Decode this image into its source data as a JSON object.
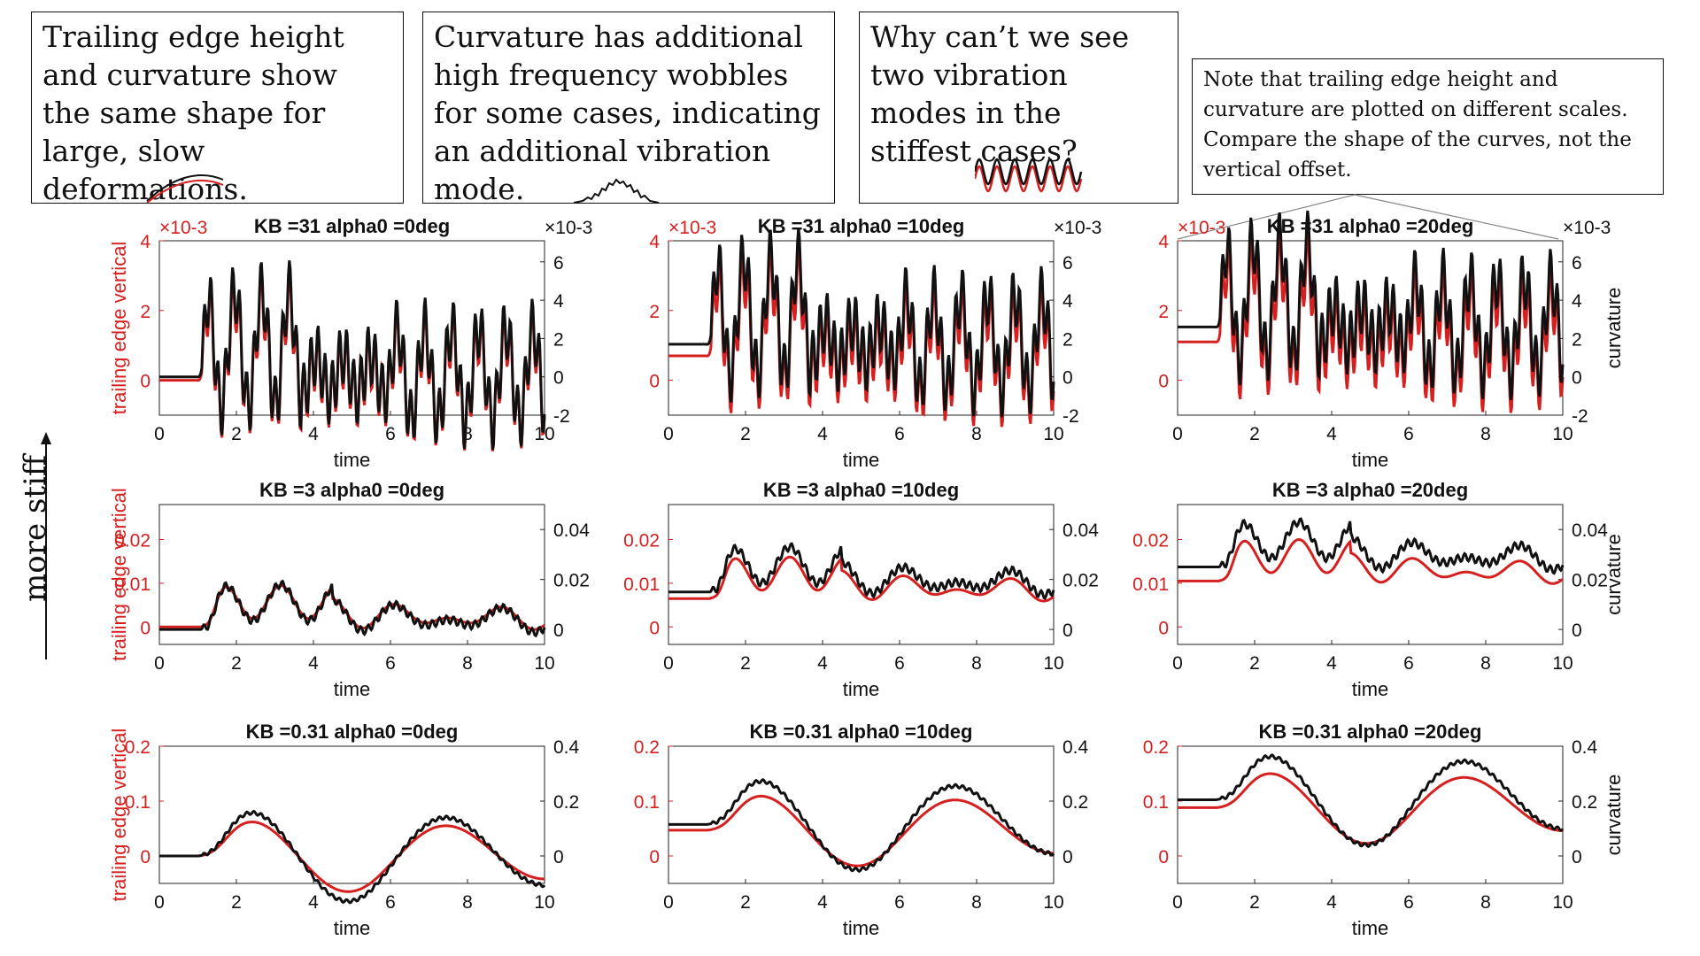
{
  "notes": [
    {
      "id": "n1",
      "text": "Trailing edge height and curvature show the same shape for large, slow deformations."
    },
    {
      "id": "n2",
      "text": "Curvature has additional high frequency wobbles for some cases, indicating an additional vibration mode."
    },
    {
      "id": "n3",
      "text": "Why can’t we see two vibration modes in the stiffest cases?"
    },
    {
      "id": "n4",
      "text": "Note that trailing edge height and curvature are plotted on different scales. Compare the shape of the curves, not the vertical offset."
    }
  ],
  "side_label": "more stiff",
  "colors": {
    "red": "#d62020",
    "black": "#111111"
  },
  "chart_data": [
    {
      "type": "line",
      "title": "KB =31 alpha0 =0deg",
      "xlabel": "time",
      "ylabel_left": "trailing edge vertical",
      "ylabel_right": "",
      "left_multiplier": "×10-3",
      "right_multiplier": "×10-3",
      "xlim": [
        0,
        10
      ],
      "ylim_left": [
        -1,
        4
      ],
      "ylim_right": [
        -2,
        7.1
      ],
      "xticks": [
        0,
        2,
        4,
        6,
        8,
        10
      ],
      "yticks_left": [
        0,
        2,
        4
      ],
      "yticks_right": [
        -2,
        0,
        2,
        4,
        6
      ],
      "series": [
        {
          "color": "red",
          "axis": "left",
          "base": 0.0,
          "slow": "flat",
          "fast_amp": 0.9
        },
        {
          "color": "black",
          "axis": "right",
          "base": 0.0,
          "slow": "flat",
          "fast_amp": 1.6
        }
      ]
    },
    {
      "type": "line",
      "title": "KB =31 alpha0 =10deg",
      "xlabel": "time",
      "ylabel_left": "",
      "ylabel_right": "",
      "left_multiplier": "×10-3",
      "right_multiplier": "×10-3",
      "xlim": [
        0,
        10
      ],
      "ylim_left": [
        -1,
        4
      ],
      "ylim_right": [
        -2,
        7.1
      ],
      "xticks": [
        0,
        2,
        4,
        6,
        8,
        10
      ],
      "yticks_left": [
        0,
        2,
        4
      ],
      "yticks_right": [
        -2,
        0,
        2,
        4,
        6
      ],
      "series": [
        {
          "color": "red",
          "axis": "left",
          "base": 0.7,
          "slow": "flat",
          "fast_amp": 0.9
        },
        {
          "color": "black",
          "axis": "right",
          "base": 1.7,
          "slow": "flat",
          "fast_amp": 1.6
        }
      ]
    },
    {
      "type": "line",
      "title": "KB =31 alpha0 =20deg",
      "xlabel": "time",
      "ylabel_left": "",
      "ylabel_right": "curvature",
      "left_multiplier": "×10-3",
      "right_multiplier": "×10-3",
      "xlim": [
        0,
        10
      ],
      "ylim_left": [
        -1,
        4
      ],
      "ylim_right": [
        -2,
        7.1
      ],
      "xticks": [
        0,
        2,
        4,
        6,
        8,
        10
      ],
      "yticks_left": [
        0,
        2,
        4
      ],
      "yticks_right": [
        -2,
        0,
        2,
        4,
        6
      ],
      "series": [
        {
          "color": "red",
          "axis": "left",
          "base": 1.1,
          "slow": "flat",
          "fast_amp": 0.9
        },
        {
          "color": "black",
          "axis": "right",
          "base": 2.6,
          "slow": "flat",
          "fast_amp": 1.6
        }
      ]
    },
    {
      "type": "line",
      "title": "KB =3 alpha0 =0deg",
      "xlabel": "time",
      "ylabel_left": "trailing edge vertical",
      "ylabel_right": "",
      "xlim": [
        0,
        10
      ],
      "ylim_left": [
        -0.004,
        0.028
      ],
      "ylim_right": [
        -0.006,
        0.05
      ],
      "xticks": [
        0,
        2,
        4,
        6,
        8,
        10
      ],
      "yticks_left": [
        0,
        0.01,
        0.02
      ],
      "yticks_right": [
        0,
        0.02,
        0.04
      ],
      "series": [
        {
          "color": "red",
          "axis": "left",
          "base": 0.0,
          "slow": "mid",
          "fast_amp": 0.0
        },
        {
          "color": "black",
          "axis": "right",
          "base": 0.0,
          "slow": "mid",
          "fast_amp": 0.0015
        }
      ]
    },
    {
      "type": "line",
      "title": "KB =3 alpha0 =10deg",
      "xlabel": "time",
      "ylabel_left": "",
      "ylabel_right": "",
      "xlim": [
        0,
        10
      ],
      "ylim_left": [
        -0.004,
        0.028
      ],
      "ylim_right": [
        -0.006,
        0.05
      ],
      "xticks": [
        0,
        2,
        4,
        6,
        8,
        10
      ],
      "yticks_left": [
        0,
        0.01,
        0.02
      ],
      "yticks_right": [
        0,
        0.02,
        0.04
      ],
      "series": [
        {
          "color": "red",
          "axis": "left",
          "base": 0.0065,
          "slow": "mid",
          "fast_amp": 0.0
        },
        {
          "color": "black",
          "axis": "right",
          "base": 0.015,
          "slow": "mid",
          "fast_amp": 0.0015
        }
      ]
    },
    {
      "type": "line",
      "title": "KB =3 alpha0 =20deg",
      "xlabel": "time",
      "ylabel_left": "",
      "ylabel_right": "curvature",
      "xlim": [
        0,
        10
      ],
      "ylim_left": [
        -0.004,
        0.028
      ],
      "ylim_right": [
        -0.006,
        0.05
      ],
      "xticks": [
        0,
        2,
        4,
        6,
        8,
        10
      ],
      "yticks_left": [
        0,
        0.01,
        0.02
      ],
      "yticks_right": [
        0,
        0.02,
        0.04
      ],
      "series": [
        {
          "color": "red",
          "axis": "left",
          "base": 0.0105,
          "slow": "mid",
          "fast_amp": 0.0
        },
        {
          "color": "black",
          "axis": "right",
          "base": 0.025,
          "slow": "mid",
          "fast_amp": 0.0015
        }
      ]
    },
    {
      "type": "line",
      "title": "KB =0.31 alpha0 =0deg",
      "xlabel": "time",
      "ylabel_left": "trailing edge vertical",
      "ylabel_right": "",
      "xlim": [
        0,
        10
      ],
      "ylim_left": [
        -0.05,
        0.2
      ],
      "ylim_right": [
        -0.1,
        0.4
      ],
      "xticks": [
        0,
        2,
        4,
        6,
        8,
        10
      ],
      "yticks_left": [
        0,
        0.1,
        0.2
      ],
      "yticks_right": [
        0,
        0.2,
        0.4
      ],
      "series": [
        {
          "color": "red",
          "axis": "left",
          "base": 0.0,
          "slow": "slow",
          "fast_amp": 0.0
        },
        {
          "color": "black",
          "axis": "right",
          "base": 0.0,
          "slow": "slow",
          "fast_amp": 0.006
        }
      ]
    },
    {
      "type": "line",
      "title": "KB =0.31 alpha0 =10deg",
      "xlabel": "time",
      "ylabel_left": "",
      "ylabel_right": "",
      "xlim": [
        0,
        10
      ],
      "ylim_left": [
        -0.05,
        0.2
      ],
      "ylim_right": [
        -0.1,
        0.4
      ],
      "xticks": [
        0,
        2,
        4,
        6,
        8,
        10
      ],
      "yticks_left": [
        0,
        0.1,
        0.2
      ],
      "yticks_right": [
        0,
        0.2,
        0.4
      ],
      "series": [
        {
          "color": "red",
          "axis": "left",
          "base": 0.047,
          "slow": "slow",
          "fast_amp": 0.0
        },
        {
          "color": "black",
          "axis": "right",
          "base": 0.115,
          "slow": "slow",
          "fast_amp": 0.006
        }
      ]
    },
    {
      "type": "line",
      "title": "KB =0.31 alpha0 =20deg",
      "xlabel": "time",
      "ylabel_left": "",
      "ylabel_right": "curvature",
      "xlim": [
        0,
        10
      ],
      "ylim_left": [
        -0.05,
        0.2
      ],
      "ylim_right": [
        -0.1,
        0.4
      ],
      "xticks": [
        0,
        2,
        4,
        6,
        8,
        10
      ],
      "yticks_left": [
        0,
        0.1,
        0.2
      ],
      "yticks_right": [
        0,
        0.2,
        0.4
      ],
      "series": [
        {
          "color": "red",
          "axis": "left",
          "base": 0.088,
          "slow": "slow",
          "fast_amp": 0.0
        },
        {
          "color": "black",
          "axis": "right",
          "base": 0.205,
          "slow": "slow",
          "fast_amp": 0.006
        }
      ]
    }
  ]
}
